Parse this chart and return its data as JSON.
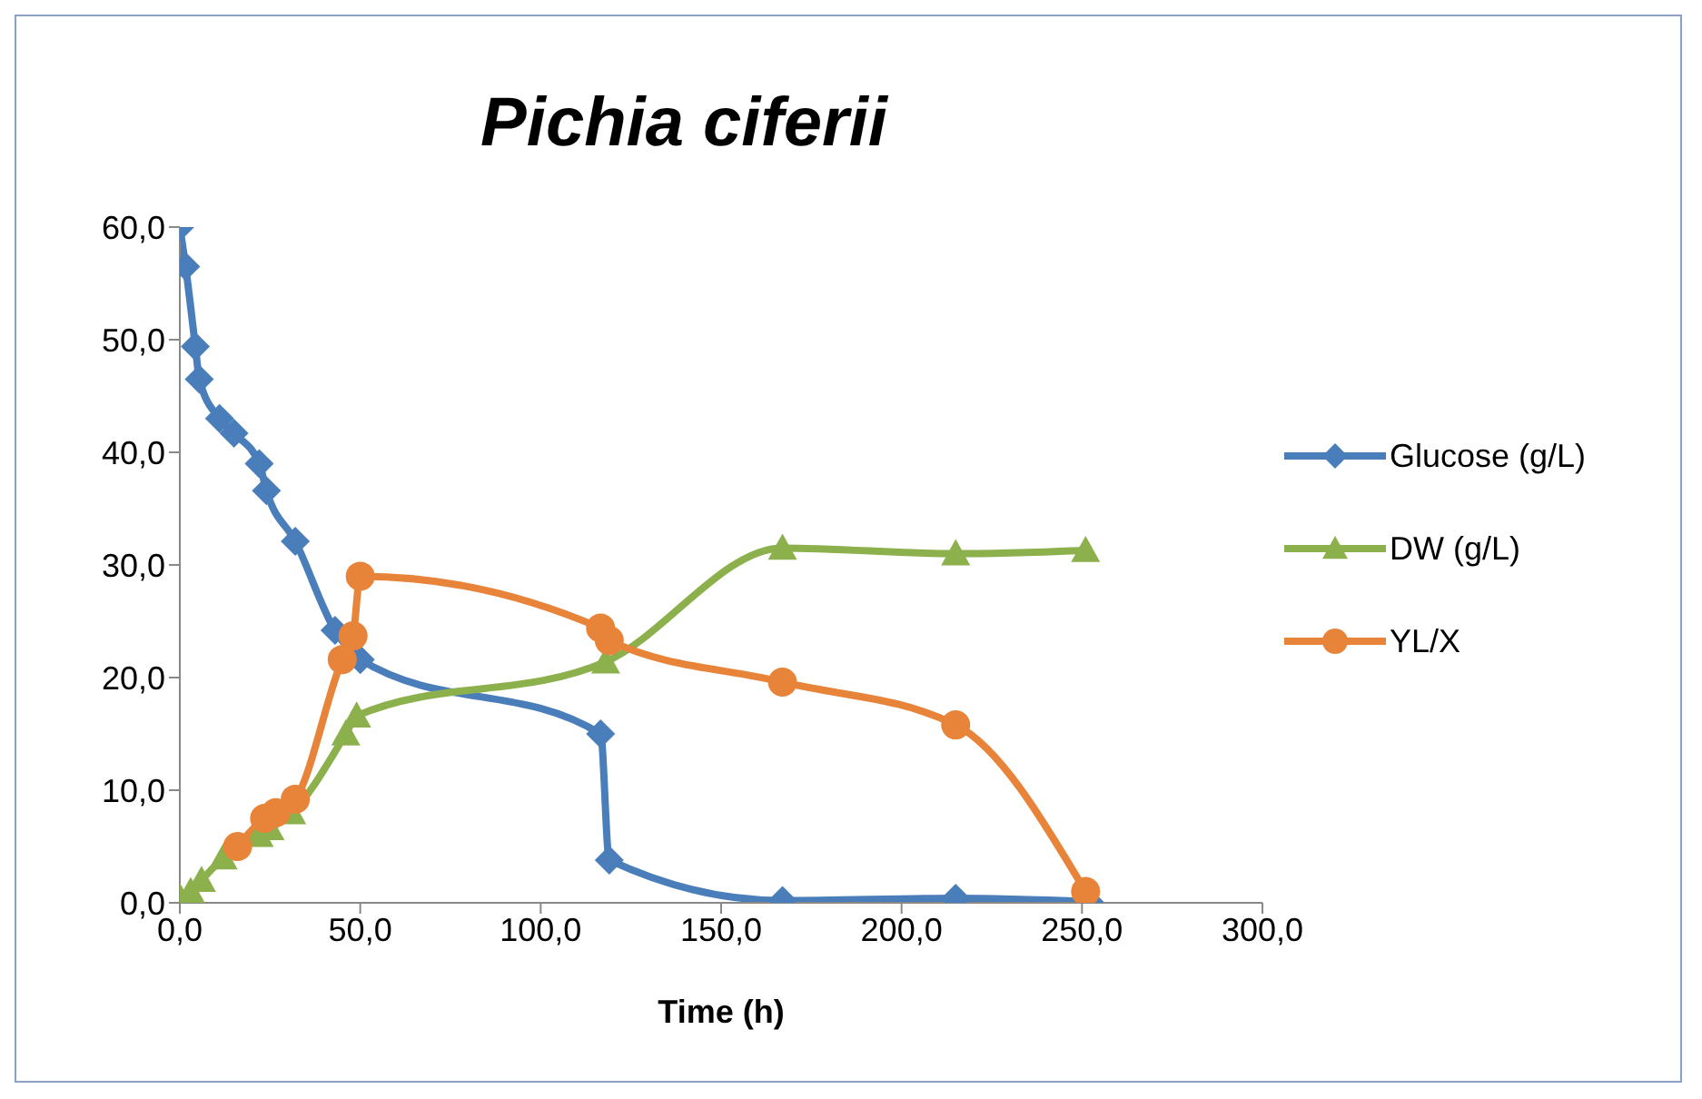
{
  "chart_data": {
    "type": "line",
    "title": "Pichia ciferii",
    "xlabel": "Time (h)",
    "xlim": [
      0,
      300
    ],
    "xticks": [
      {
        "value": 0,
        "label": "0,0"
      },
      {
        "value": 50,
        "label": "50,0"
      },
      {
        "value": 100,
        "label": "100,0"
      },
      {
        "value": 150,
        "label": "150,0"
      },
      {
        "value": 200,
        "label": "200,0"
      },
      {
        "value": 250,
        "label": "250,0"
      },
      {
        "value": 300,
        "label": "300,0"
      }
    ],
    "ylim": [
      0,
      60
    ],
    "yticks": [
      {
        "value": 0,
        "label": "0,0"
      },
      {
        "value": 10,
        "label": "10,0"
      },
      {
        "value": 20,
        "label": "20,0"
      },
      {
        "value": 30,
        "label": "30,0"
      },
      {
        "value": 40,
        "label": "40,0"
      },
      {
        "value": 50,
        "label": "50,0"
      },
      {
        "value": 60,
        "label": "60,0"
      }
    ],
    "grid": false,
    "legend": "right",
    "series": [
      {
        "name": "Glucose (g/L)",
        "color": "#4a7ebb",
        "marker": "diamond",
        "x": [
          0,
          1.6,
          4.3,
          5.4,
          11,
          15,
          22,
          24,
          32,
          43,
          50,
          116.6,
          119,
          167,
          215,
          252
        ],
        "values": [
          60,
          56.5,
          49.4,
          46.5,
          43,
          41.7,
          39,
          36.6,
          32.1,
          24.2,
          21.6,
          15,
          3.8,
          0.2,
          0.4,
          0.1
        ]
      },
      {
        "name": "DW (g/L)",
        "color": "#8cb04b",
        "marker": "triangle",
        "x": [
          0,
          3,
          6,
          12,
          22,
          25,
          31,
          46,
          49,
          118,
          167,
          215,
          251
        ],
        "values": [
          0.5,
          1,
          2,
          4,
          6,
          6.6,
          8,
          15,
          16.6,
          21.4,
          31.5,
          31,
          31.3
        ]
      },
      {
        "name": "YL/X",
        "color": "#e8843a",
        "marker": "circle",
        "x": [
          16,
          23.5,
          26.6,
          32,
          45,
          48,
          50,
          116.6,
          119,
          167,
          215,
          251
        ],
        "values": [
          5,
          7.5,
          8,
          9.2,
          21.6,
          23.7,
          29,
          24.4,
          23.3,
          19.6,
          15.8,
          1
        ]
      }
    ]
  }
}
